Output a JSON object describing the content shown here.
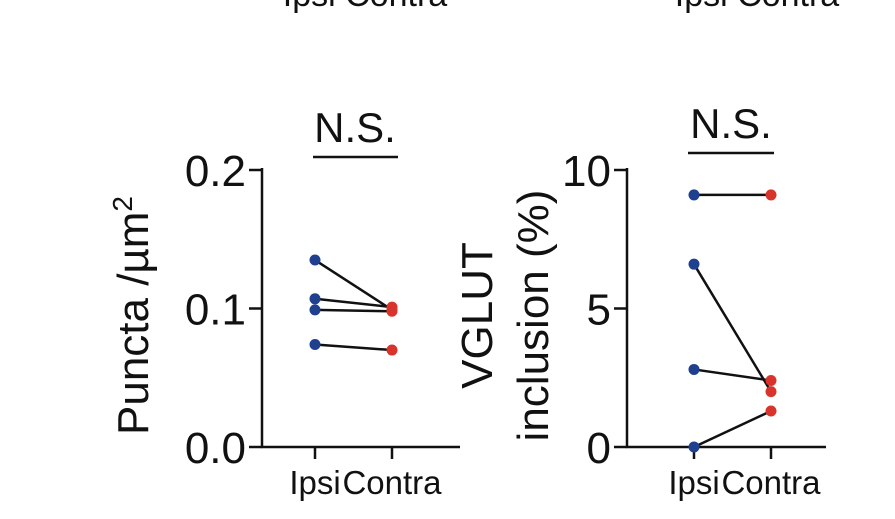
{
  "top_labels": {
    "left": "Ipsi Contra",
    "right": "Ipsi Contra"
  },
  "colors": {
    "ipsi": "#1f3f8f",
    "contra": "#d9342b",
    "line": "#111111",
    "axis": "#111111"
  },
  "chart_data": [
    {
      "type": "scatter",
      "subtype": "paired-dot",
      "significance": "N.S.",
      "ylabel_line1": "Puncta /µm",
      "ylabel_sup": "2",
      "ylabel_line2": "",
      "ylim": [
        0,
        0.2
      ],
      "yticks": [
        0.0,
        0.1,
        0.2
      ],
      "ytick_labels": [
        "0.0",
        "0.1",
        "0.2"
      ],
      "categories": [
        "Ipsi",
        "Contra"
      ],
      "pairs": [
        {
          "ipsi": 0.135,
          "contra": 0.099
        },
        {
          "ipsi": 0.107,
          "contra": 0.101
        },
        {
          "ipsi": 0.099,
          "contra": 0.098
        },
        {
          "ipsi": 0.074,
          "contra": 0.07
        }
      ]
    },
    {
      "type": "scatter",
      "subtype": "paired-dot",
      "significance": "N.S.",
      "ylabel_line1": "VGLUT",
      "ylabel_sup": "",
      "ylabel_line2": "inclusion (%)",
      "ylim": [
        0,
        10
      ],
      "yticks": [
        0,
        5,
        10
      ],
      "ytick_labels": [
        "0",
        "5",
        "10"
      ],
      "categories": [
        "Ipsi",
        "Contra"
      ],
      "pairs": [
        {
          "ipsi": 9.1,
          "contra": 9.1
        },
        {
          "ipsi": 6.6,
          "contra": 2.0
        },
        {
          "ipsi": 2.8,
          "contra": 2.4
        },
        {
          "ipsi": 0.0,
          "contra": 1.3
        }
      ]
    }
  ]
}
